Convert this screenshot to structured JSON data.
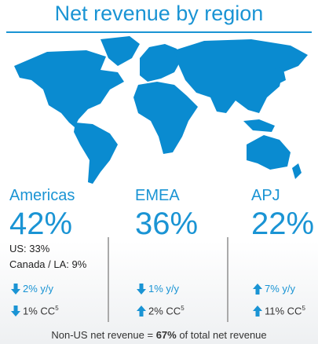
{
  "title": "Net revenue by region",
  "regions": [
    {
      "name": "Americas",
      "share": "42%",
      "details": [
        "US: 33%",
        "Canada / LA: 9%"
      ],
      "yy": {
        "text": "2% y/y",
        "direction": "down"
      },
      "cc": {
        "text": "1% CC",
        "sup": "5",
        "direction": "down"
      }
    },
    {
      "name": "EMEA",
      "share": "36%",
      "details": [],
      "yy": {
        "text": "1% y/y",
        "direction": "down"
      },
      "cc": {
        "text": "2% CC",
        "sup": "5",
        "direction": "up"
      }
    },
    {
      "name": "APJ",
      "share": "22%",
      "details": [],
      "yy": {
        "text": "7% y/y",
        "direction": "up"
      },
      "cc": {
        "text": "11% CC",
        "sup": "5",
        "direction": "up"
      }
    }
  ],
  "footer": {
    "before": "Non-US net revenue = ",
    "bold": "67%",
    "after": " of total net revenue"
  }
}
